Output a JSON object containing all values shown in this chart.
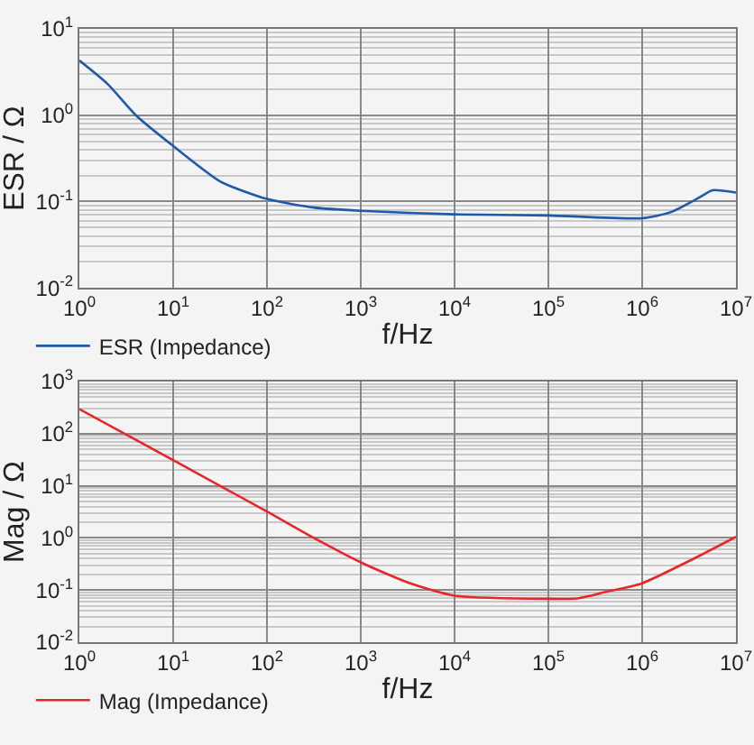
{
  "chart_data": [
    {
      "type": "line",
      "xlabel": "f/Hz",
      "ylabel": "ESR / Ω",
      "log": "xy",
      "grid": true,
      "legend": "bottom left",
      "marker": "none",
      "line_style": "solid",
      "xlim": [
        1,
        10000000
      ],
      "ylim": [
        0.01,
        10
      ],
      "xticks": [
        {
          "value": 1,
          "label": "10$^{0}$"
        },
        {
          "value": 10,
          "label": "10$^{1}$"
        },
        {
          "value": 100,
          "label": "10$^{2}$"
        },
        {
          "value": 1000,
          "label": "10$^{3}$"
        },
        {
          "value": 10000,
          "label": "10$^{4}$"
        },
        {
          "value": 100000,
          "label": "10$^{5}$"
        },
        {
          "value": 1000000,
          "label": "10$^{6}$"
        },
        {
          "value": 10000000,
          "label": "10$^{7}$"
        }
      ],
      "yticks": [
        {
          "value": 0.01,
          "label": "10$^{-2}$"
        },
        {
          "value": 0.1,
          "label": "10$^{-1}$"
        },
        {
          "value": 1,
          "label": "10$^{0}$"
        },
        {
          "value": 10,
          "label": "10$^{1}$"
        }
      ],
      "x": [
        1,
        2,
        4,
        10,
        32,
        100,
        316,
        1000,
        10000,
        100000,
        1000000,
        2000000,
        4000000,
        5600000,
        10000000
      ],
      "series": [
        {
          "name": "ESR (Impedance)",
          "color": "#1f5aa8",
          "values": [
            4.3,
            2.3,
            1.0,
            0.44,
            0.17,
            0.107,
            0.085,
            0.078,
            0.071,
            0.069,
            0.064,
            0.075,
            0.11,
            0.135,
            0.127
          ]
        }
      ]
    },
    {
      "type": "line",
      "xlabel": "f/Hz",
      "ylabel": "Mag / Ω",
      "log": "xy",
      "grid": true,
      "legend": "bottom left",
      "marker": "none",
      "line_style": "solid",
      "xlim": [
        1,
        10000000
      ],
      "ylim": [
        0.01,
        1000
      ],
      "xticks": [
        {
          "value": 1,
          "label": "10$^{0}$"
        },
        {
          "value": 10,
          "label": "10$^{1}$"
        },
        {
          "value": 100,
          "label": "10$^{2}$"
        },
        {
          "value": 1000,
          "label": "10$^{3}$"
        },
        {
          "value": 10000,
          "label": "10$^{4}$"
        },
        {
          "value": 100000,
          "label": "10$^{5}$"
        },
        {
          "value": 1000000,
          "label": "10$^{6}$"
        },
        {
          "value": 10000000,
          "label": "10$^{7}$"
        }
      ],
      "yticks": [
        {
          "value": 0.01,
          "label": "10$^{-2}$"
        },
        {
          "value": 0.1,
          "label": "10$^{-1}$"
        },
        {
          "value": 1,
          "label": "10$^{0}$"
        },
        {
          "value": 10,
          "label": "10$^{1}$"
        },
        {
          "value": 100,
          "label": "10$^{2}$"
        },
        {
          "value": 1000,
          "label": "10$^{3}$"
        }
      ],
      "x": [
        1,
        10,
        100,
        316,
        1000,
        3160,
        10000,
        100000,
        200000,
        400000,
        1000000,
        3160000,
        10000000
      ],
      "series": [
        {
          "name": "Mag (Impedance)",
          "color": "#e8262a",
          "values": [
            295,
            31,
            3.2,
            1.0,
            0.34,
            0.14,
            0.078,
            0.068,
            0.069,
            0.091,
            0.135,
            0.36,
            1.05
          ]
        }
      ]
    }
  ]
}
